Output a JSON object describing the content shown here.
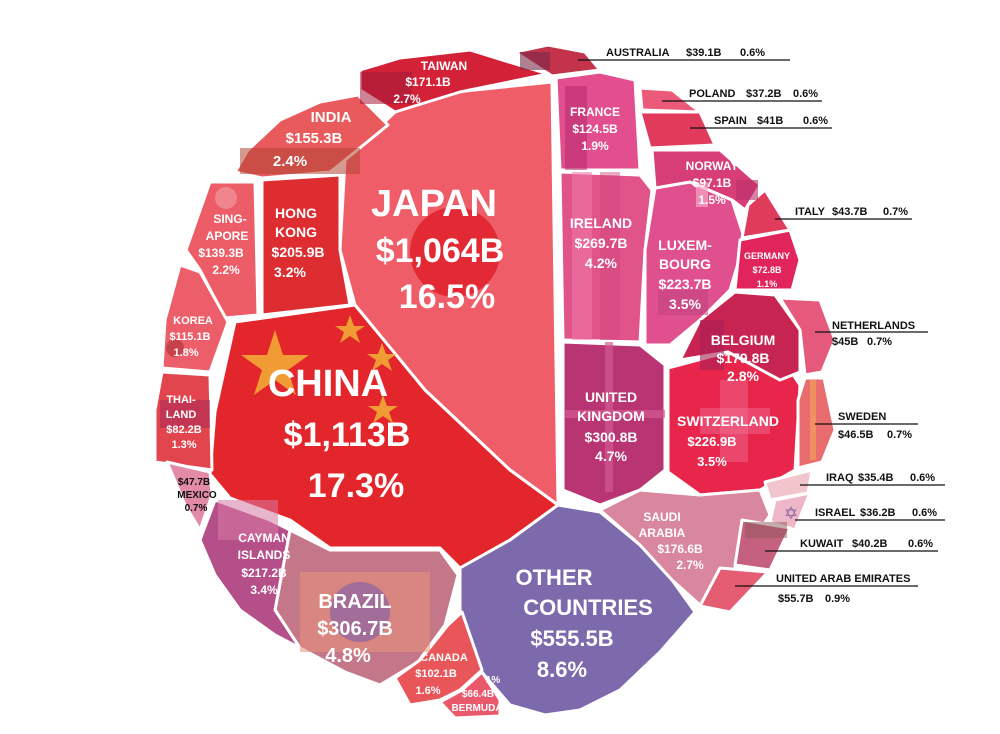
{
  "chart_data": {
    "type": "voronoi-treemap",
    "cells": [
      {
        "name": "CHINA",
        "value": "$1,113B",
        "pct": "17.3%",
        "color": "#e3262b",
        "label_color": "#ffffff"
      },
      {
        "name": "JAPAN",
        "value": "$1,064B",
        "pct": "16.5%",
        "color": "#ee5d68",
        "label_color": "#ffffff"
      },
      {
        "name": "OTHER COUNTRIES",
        "value": "$555.5B",
        "pct": "8.6%",
        "color": "#7d6aac",
        "label_color": "#ffffff"
      },
      {
        "name": "BRAZIL",
        "value": "$306.7B",
        "pct": "4.8%",
        "color": "#c5778a",
        "label_color": "#ffffff"
      },
      {
        "name": "UNITED KINGDOM",
        "value": "$300.8B",
        "pct": "4.7%",
        "color": "#b93472",
        "label_color": "#ffffff"
      },
      {
        "name": "IRELAND",
        "value": "$269.7B",
        "pct": "4.2%",
        "color": "#e1548a",
        "label_color": "#ffffff"
      },
      {
        "name": "SWITZERLAND",
        "value": "$226.9B",
        "pct": "3.5%",
        "color": "#e8264c",
        "label_color": "#ffffff"
      },
      {
        "name": "LUXEMBOURG",
        "value": "$223.7B",
        "pct": "3.5%",
        "color": "#e0508f",
        "label_color": "#ffffff"
      },
      {
        "name": "CAYMAN ISLANDS",
        "value": "$217.2B",
        "pct": "3.4%",
        "color": "#b54f89",
        "label_color": "#ffffff"
      },
      {
        "name": "HONG KONG",
        "value": "$205.9B",
        "pct": "3.2%",
        "color": "#dd2d30",
        "label_color": "#ffffff"
      },
      {
        "name": "BELGIUM",
        "value": "$179.8B",
        "pct": "2.8%",
        "color": "#c82451",
        "label_color": "#ffffff"
      },
      {
        "name": "SAUDI ARABIA",
        "value": "$176.6B",
        "pct": "2.7%",
        "color": "#d9879e",
        "label_color": "#ffffff"
      },
      {
        "name": "TAIWAN",
        "value": "$171.1B",
        "pct": "2.7%",
        "color": "#d32138",
        "label_color": "#ffffff"
      },
      {
        "name": "INDIA",
        "value": "$155.3B",
        "pct": "2.4%",
        "color": "#e85a5c",
        "label_color": "#ffffff"
      },
      {
        "name": "SINGAPORE",
        "value": "$139.3B",
        "pct": "2.2%",
        "color": "#ec5d67",
        "label_color": "#ffffff"
      },
      {
        "name": "FRANCE",
        "value": "$124.5B",
        "pct": "1.9%",
        "color": "#e34e8e",
        "label_color": "#ffffff"
      },
      {
        "name": "KOREA",
        "value": "$115.1B",
        "pct": "1.8%",
        "color": "#ec5f6a",
        "label_color": "#ffffff"
      },
      {
        "name": "CANADA",
        "value": "$102.1B",
        "pct": "1.6%",
        "color": "#e8565a",
        "label_color": "#ffffff"
      },
      {
        "name": "NORWAY",
        "value": "$97.1B",
        "pct": "1.5%",
        "color": "#d73d77",
        "label_color": "#ffffff"
      },
      {
        "name": "THAILAND",
        "value": "$82.2B",
        "pct": "1.3%",
        "color": "#e2454e",
        "label_color": "#ffffff"
      },
      {
        "name": "GERMANY",
        "value": "$72.8B",
        "pct": "1.1%",
        "color": "#e1245c",
        "label_color": "#ffffff"
      },
      {
        "name": "BERMUDA",
        "value": "$66.4B",
        "pct": "1%",
        "color": "#e9596b",
        "label_color": "#ffffff"
      },
      {
        "name": "MEXICO",
        "value": "$47.7B",
        "pct": "0.7%",
        "color": "#e28aa6",
        "label_color": "#111111"
      },
      {
        "name": "AUSTRALIA",
        "value": "$39.1B",
        "pct": "0.6%",
        "color": "#c3344c"
      },
      {
        "name": "POLAND",
        "value": "$37.2B",
        "pct": "0.6%",
        "color": "#ec5a7a"
      },
      {
        "name": "SPAIN",
        "value": "$41B",
        "pct": "0.6%",
        "color": "#e23a5a"
      },
      {
        "name": "ITALY",
        "value": "$43.7B",
        "pct": "0.7%",
        "color": "#df3c5c"
      },
      {
        "name": "NETHERLANDS",
        "value": "$45B",
        "pct": "0.7%",
        "color": "#e55a7c"
      },
      {
        "name": "SWEDEN",
        "value": "$46.5B",
        "pct": "0.7%",
        "color": "#e96d6e"
      },
      {
        "name": "IRAQ",
        "value": "$35.4B",
        "pct": "0.6%",
        "color": "#f2c4cc"
      },
      {
        "name": "ISRAEL",
        "value": "$36.2B",
        "pct": "0.6%",
        "color": "#eeb6c6"
      },
      {
        "name": "KUWAIT",
        "value": "$40.2B",
        "pct": "0.6%",
        "color": "#c5607e"
      },
      {
        "name": "UNITED ARAB EMIRATES",
        "value": "$55.7B",
        "pct": "0.9%",
        "color": "#e45d73"
      }
    ]
  }
}
